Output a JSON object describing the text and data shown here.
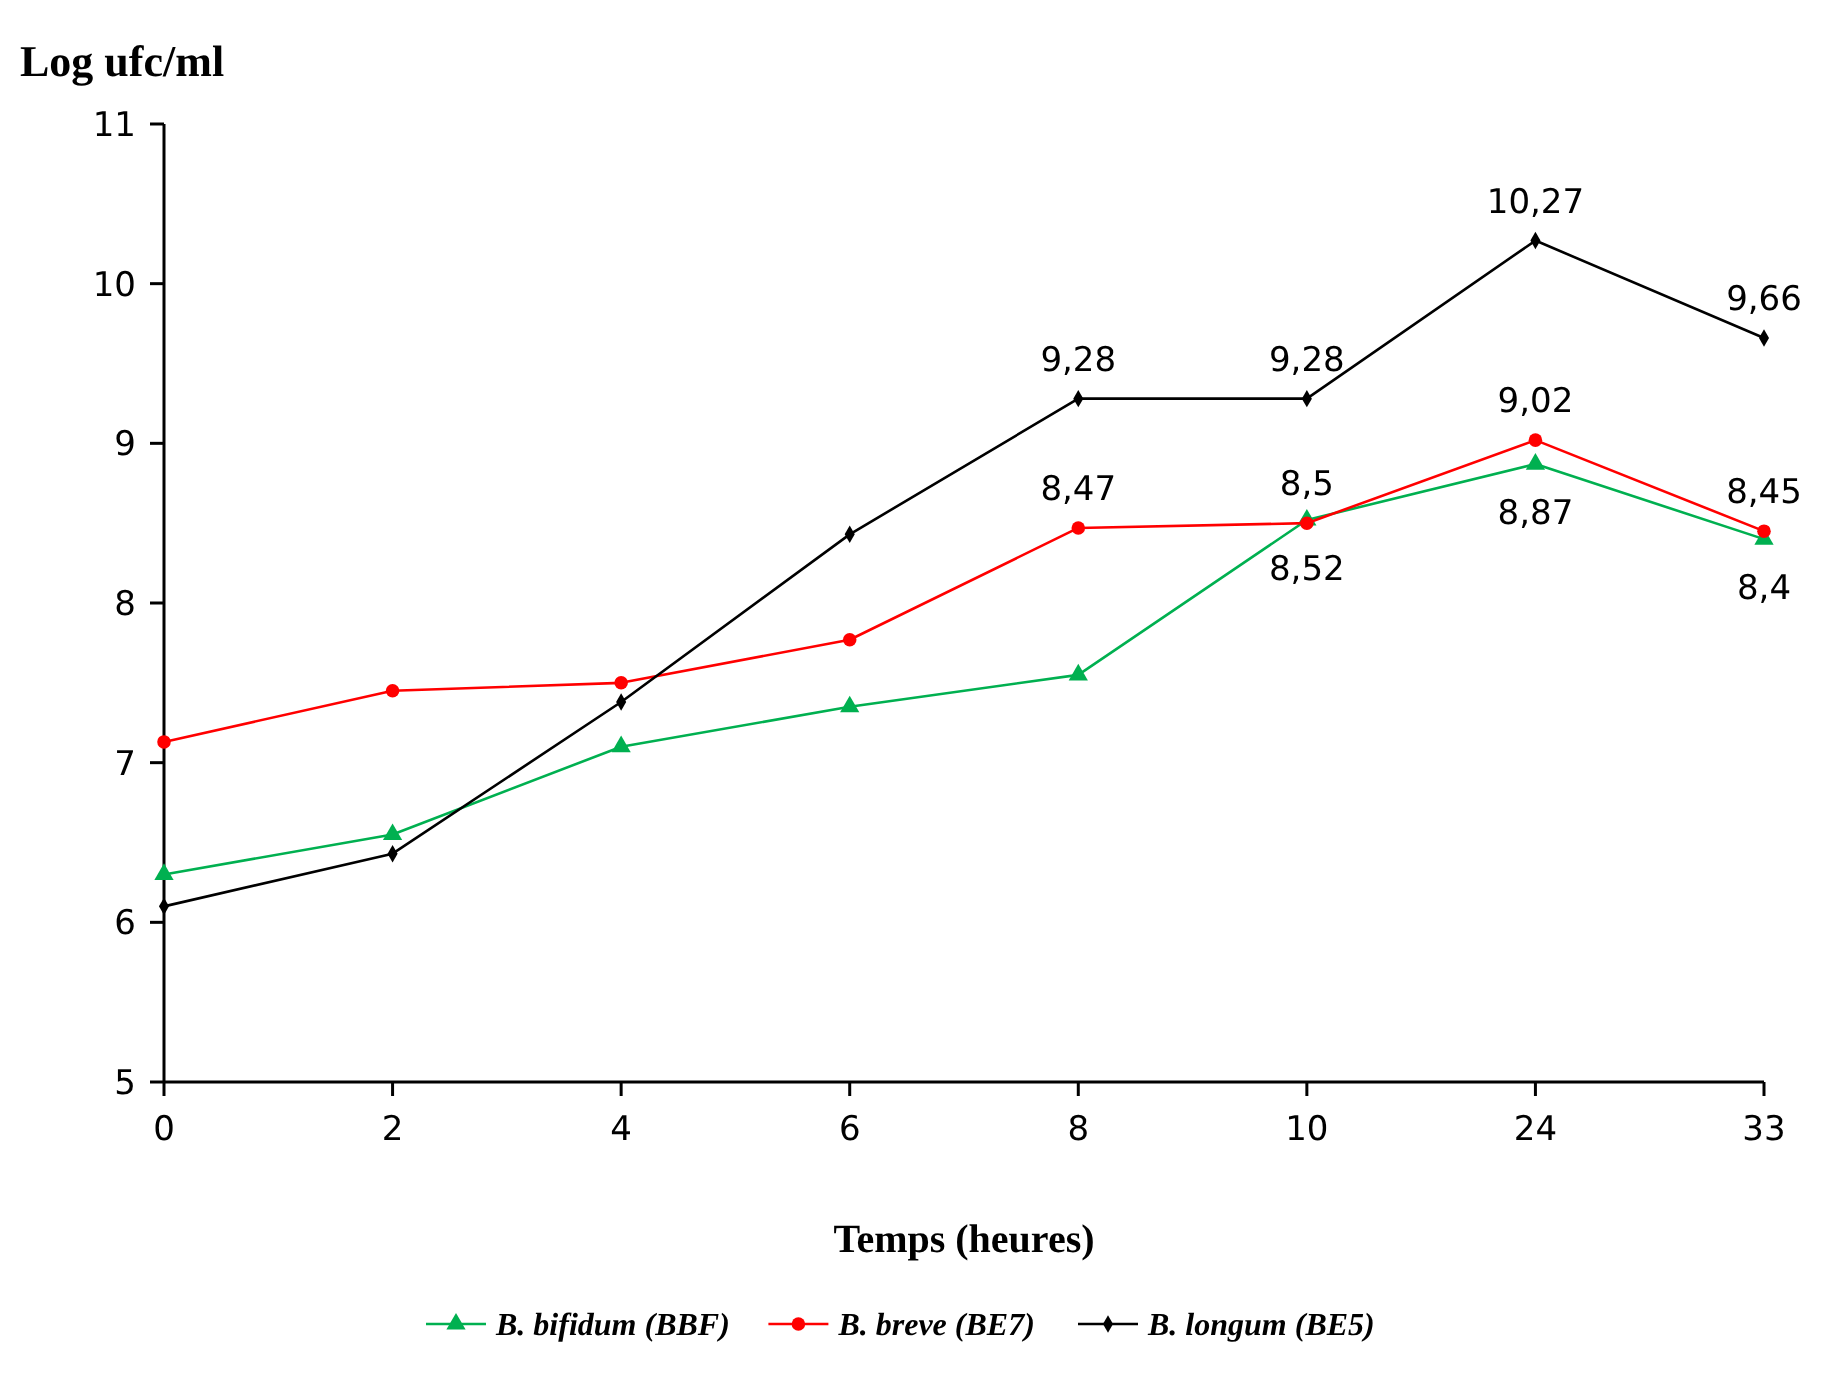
{
  "chart_data": {
    "type": "line",
    "ylabel": "Log ufc/ml",
    "xlabel": "Temps (heures)",
    "categories": [
      "0",
      "2",
      "4",
      "6",
      "8",
      "10",
      "24",
      "33"
    ],
    "ylim": [
      5,
      11
    ],
    "yticks": [
      5,
      6,
      7,
      8,
      9,
      10,
      11
    ],
    "grid": false,
    "legend": "bottom",
    "series": [
      {
        "name": "B. bifidum (BBF)",
        "color": "#00b050",
        "marker": "triangle",
        "values": [
          6.3,
          6.55,
          7.1,
          7.35,
          7.55,
          8.52,
          8.87,
          8.4
        ],
        "value_labels": [
          null,
          null,
          null,
          null,
          null,
          "8,52",
          "8,87",
          "8,4"
        ]
      },
      {
        "name": "B. breve (BE7)",
        "color": "#ff0000",
        "marker": "circle",
        "values": [
          7.13,
          7.45,
          7.5,
          7.77,
          8.47,
          8.5,
          9.02,
          8.45
        ],
        "value_labels": [
          null,
          null,
          null,
          null,
          "8,47",
          "8,5",
          "9,02",
          "8,45"
        ]
      },
      {
        "name": "B. longum (BE5)",
        "color": "#000000",
        "marker": "diamond",
        "values": [
          6.1,
          6.43,
          7.38,
          8.43,
          9.28,
          9.28,
          10.27,
          9.66
        ],
        "value_labels": [
          null,
          null,
          null,
          null,
          "9,28",
          "9,28",
          "10,27",
          "9,66"
        ]
      }
    ]
  }
}
